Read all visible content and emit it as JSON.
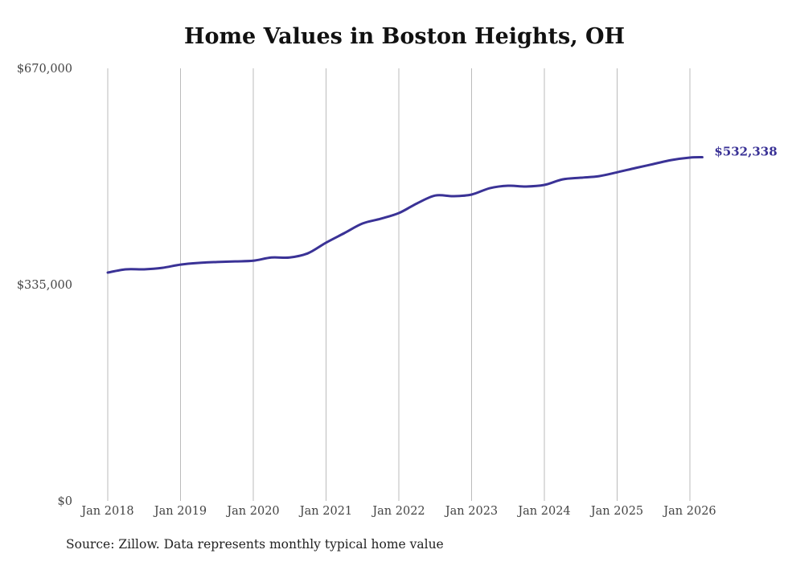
{
  "chart_data": {
    "type": "line",
    "title": "Home Values in Boston Heights, OH",
    "source": "Source: Zillow. Data represents monthly typical home value",
    "xlabel": "",
    "ylabel": "",
    "ylim": [
      0,
      670000
    ],
    "y_ticks": [
      {
        "value": 0,
        "label": "$0"
      },
      {
        "value": 335000,
        "label": "$335,000"
      },
      {
        "value": 670000,
        "label": "$670,000"
      }
    ],
    "x_ticks": [
      {
        "value": 2018,
        "label": "Jan 2018"
      },
      {
        "value": 2019,
        "label": "Jan 2019"
      },
      {
        "value": 2020,
        "label": "Jan 2020"
      },
      {
        "value": 2021,
        "label": "Jan 2021"
      },
      {
        "value": 2022,
        "label": "Jan 2022"
      },
      {
        "value": 2023,
        "label": "Jan 2023"
      },
      {
        "value": 2024,
        "label": "Jan 2024"
      },
      {
        "value": 2025,
        "label": "Jan 2025"
      },
      {
        "value": 2026,
        "label": "Jan 2026"
      }
    ],
    "grid": "vertical",
    "line_color": "#3a3296",
    "end_label": "$532,338",
    "series": [
      {
        "name": "Typical home value",
        "x": [
          2018.0,
          2018.25,
          2018.5,
          2018.75,
          2019.0,
          2019.25,
          2019.5,
          2019.75,
          2020.0,
          2020.25,
          2020.5,
          2020.75,
          2021.0,
          2021.25,
          2021.5,
          2021.75,
          2022.0,
          2022.25,
          2022.5,
          2022.75,
          2023.0,
          2023.25,
          2023.5,
          2023.75,
          2024.0,
          2024.25,
          2024.5,
          2024.75,
          2025.0,
          2025.25,
          2025.5,
          2025.75,
          2026.0,
          2026.17
        ],
        "values": [
          353700,
          358700,
          358700,
          361000,
          366000,
          368600,
          370000,
          371000,
          372000,
          377000,
          377000,
          383500,
          400000,
          414700,
          429600,
          437000,
          445800,
          460800,
          473000,
          472000,
          474500,
          484400,
          488200,
          487000,
          489400,
          498000,
          500600,
          503000,
          509000,
          515600,
          521800,
          528000,
          531800,
          532338
        ]
      }
    ]
  }
}
